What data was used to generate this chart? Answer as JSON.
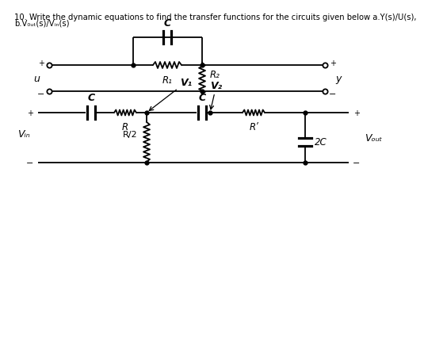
{
  "title_line1": "10. Write the dynamic equations to find the transfer functions for the circuits given below a.Y(s)/U(s),",
  "title_line2": "b.V₀ᵤₜ(s)/Vᵢₙ(s)",
  "bg_color": "#ffffff",
  "line_color": "#000000",
  "font_size_title": 7.2,
  "circuit1": {
    "C_label": "C",
    "R1_label": "R₁",
    "R2_label": "R₂",
    "u_label": "u",
    "y_label": "y"
  },
  "circuit2": {
    "C1_label": "C",
    "C2_label": "C",
    "R_label": "R",
    "R_half_label": "R/2",
    "R_prime_label": "Rʹ",
    "twoC_label": "2C",
    "V1_label": "V₁",
    "V2_label": "V₂",
    "Vin_label": "Vᵢₙ",
    "Vout_label": "Vₒᵤₜ"
  }
}
